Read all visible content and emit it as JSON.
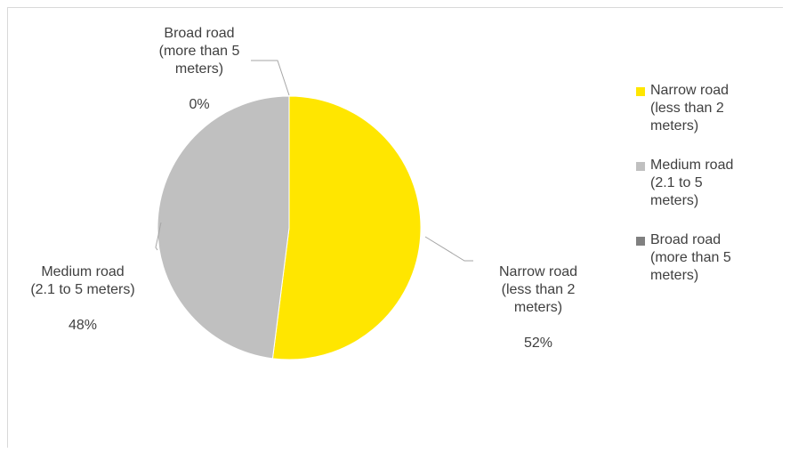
{
  "chart_data": {
    "type": "pie",
    "title": "",
    "categories": [
      "Narrow road (less than 2 meters)",
      "Medium road (2.1 to 5 meters)",
      "Broad road (more than 5 meters)"
    ],
    "values": [
      52,
      48,
      0
    ],
    "colors": [
      "#FFE600",
      "#C0C0C0",
      "#808080"
    ],
    "legend_position": "right",
    "data_labels": [
      {
        "name": "Narrow road\n(less than 2\nmeters)",
        "value": "52%"
      },
      {
        "name": "Medium road\n(2.1 to 5 meters)",
        "value": "48%"
      },
      {
        "name": "Broad road\n(more than 5\nmeters)",
        "value": "0%"
      }
    ],
    "legend": [
      "Narrow road\n(less than 2\nmeters)",
      "Medium road\n(2.1 to 5\nmeters)",
      "Broad road\n(more than 5\nmeters)"
    ]
  }
}
